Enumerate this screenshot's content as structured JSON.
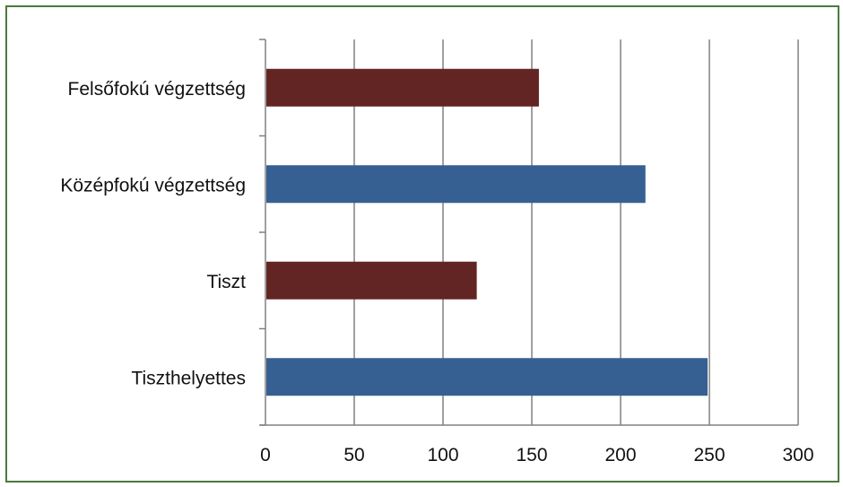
{
  "chart_data": {
    "type": "bar",
    "orientation": "horizontal",
    "categories": [
      "Felsőfokú végzettség",
      "Középfokú végzettség",
      "Tiszt",
      "Tiszthelyettes"
    ],
    "values": [
      154,
      214,
      119,
      249
    ],
    "bar_colors": [
      "#632523",
      "#366092",
      "#632523",
      "#366092"
    ],
    "xlim": [
      0,
      300
    ],
    "xticks": [
      0,
      50,
      100,
      150,
      200,
      250,
      300
    ],
    "xtick_labels": [
      "0",
      "50",
      "100",
      "150",
      "200",
      "250",
      "300"
    ],
    "grid": "vertical",
    "legend": "none",
    "title": "",
    "xlabel": "",
    "ylabel": ""
  }
}
